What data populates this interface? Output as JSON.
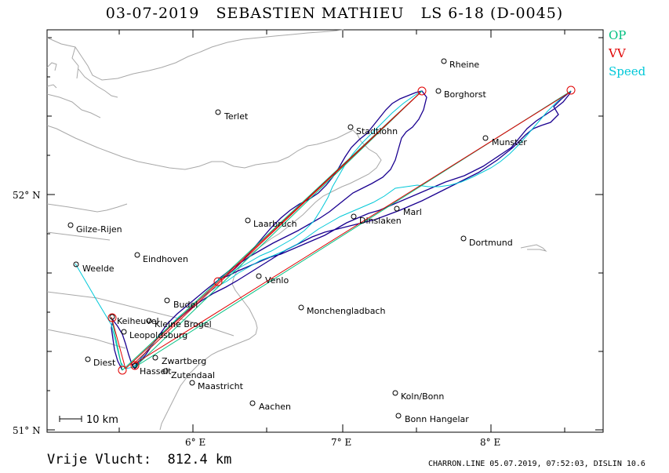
{
  "title": "03-07-2019   SEBASTIEN MATHIEU   LS 6-18 (D-0045)",
  "legend": [
    {
      "label": "OP",
      "color": "#00c080"
    },
    {
      "label": "VV",
      "color": "#e00000"
    },
    {
      "label": "Speed",
      "color": "#00c8d8"
    }
  ],
  "scale_label": "10 km",
  "distance_label": "Vrije Vlucht:  812.4 km",
  "footer": "CHARRON.LINE 05.07.2019, 07:52:03, DISLIN 10.6",
  "axes": {
    "x_ticks": [
      "6° E",
      "7° E",
      "8° E"
    ],
    "y_ticks": [
      "52° N",
      "51° N"
    ]
  },
  "places": [
    {
      "name": "Rheine"
    },
    {
      "name": "Borghorst"
    },
    {
      "name": "Terlet"
    },
    {
      "name": "Stadtlohn"
    },
    {
      "name": "Munster"
    },
    {
      "name": "Gilze-Rijen"
    },
    {
      "name": "Laarbruch"
    },
    {
      "name": "Dinslaken"
    },
    {
      "name": "Marl"
    },
    {
      "name": "Dortmund"
    },
    {
      "name": "Eindhoven"
    },
    {
      "name": "Weelde"
    },
    {
      "name": "Venlo"
    },
    {
      "name": "Budel"
    },
    {
      "name": "Monchengladbach"
    },
    {
      "name": "Keiheuvel"
    },
    {
      "name": "Kleine Brogel"
    },
    {
      "name": "Leopoldsburg"
    },
    {
      "name": "Diest"
    },
    {
      "name": "Zwartberg"
    },
    {
      "name": "Hasselt"
    },
    {
      "name": "Zutendaal"
    },
    {
      "name": "Maastricht"
    },
    {
      "name": "Koln/Bonn"
    },
    {
      "name": "Aachen"
    },
    {
      "name": "Bonn Hangelar"
    }
  ],
  "colors": {
    "track": "#1a0090",
    "op": "#00c080",
    "vv": "#e00000",
    "speed": "#00c8d8",
    "border": "#a8a8a8",
    "frame": "#000000"
  }
}
